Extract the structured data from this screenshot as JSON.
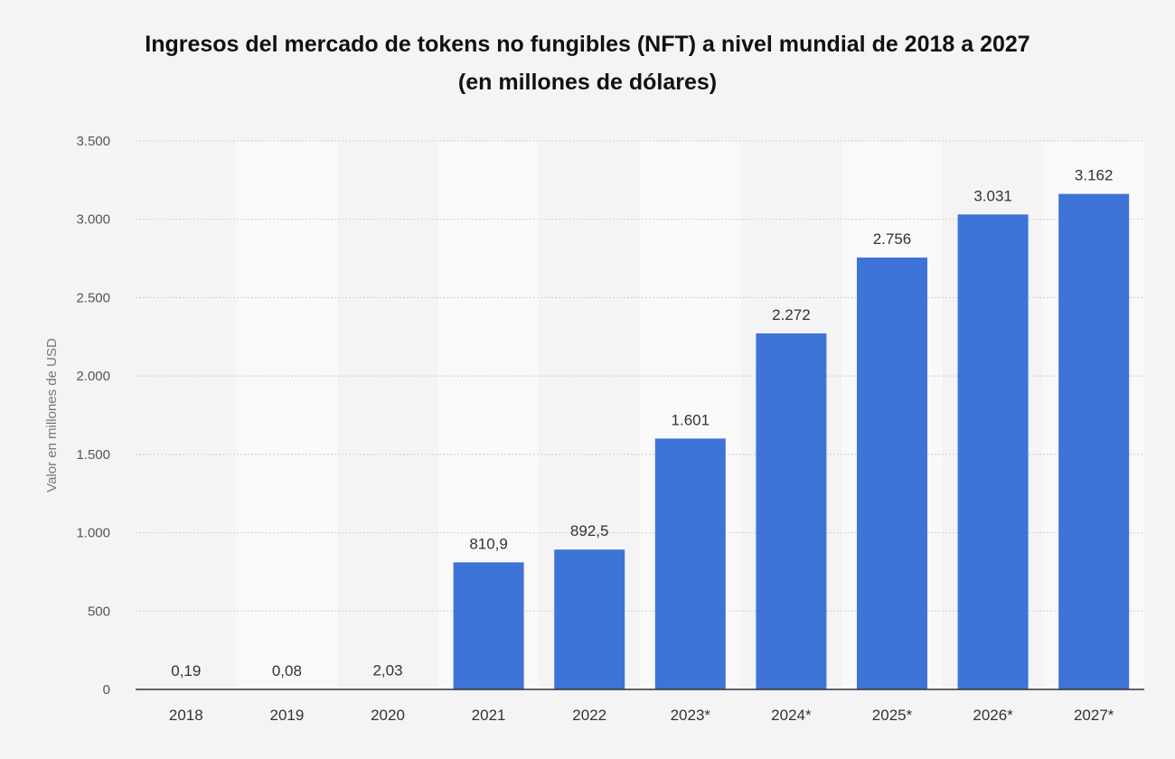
{
  "colors": {
    "background": "#f4f4f4",
    "band": "#f9f9f9",
    "bar": "#3e74d8",
    "grid": "#cccccc",
    "axis": "#333333"
  },
  "chart_data": {
    "type": "bar",
    "title": "Ingresos del mercado de tokens no fungibles (NFT) a nivel mundial de 2018 a 2027",
    "subtitle": "(en millones de dólares)",
    "xlabel": "",
    "ylabel": "Valor en millones de USD",
    "ylim": [
      0,
      3500
    ],
    "grid": true,
    "yticks": [
      {
        "value": 0,
        "label": "0"
      },
      {
        "value": 500,
        "label": "500"
      },
      {
        "value": 1000,
        "label": "1.000"
      },
      {
        "value": 1500,
        "label": "1.500"
      },
      {
        "value": 2000,
        "label": "2.000"
      },
      {
        "value": 2500,
        "label": "2.500"
      },
      {
        "value": 3000,
        "label": "3.000"
      },
      {
        "value": 3500,
        "label": "3.500"
      }
    ],
    "categories": [
      "2018",
      "2019",
      "2020",
      "2021",
      "2022",
      "2023*",
      "2024*",
      "2025*",
      "2026*",
      "2027*"
    ],
    "values": [
      0.19,
      0.08,
      2.03,
      810.9,
      892.5,
      1601,
      2272,
      2756,
      3031,
      3162
    ],
    "data_labels": [
      "0,19",
      "0,08",
      "2,03",
      "810,9",
      "892,5",
      "1.601",
      "2.272",
      "2.756",
      "3.031",
      "3.162"
    ]
  }
}
